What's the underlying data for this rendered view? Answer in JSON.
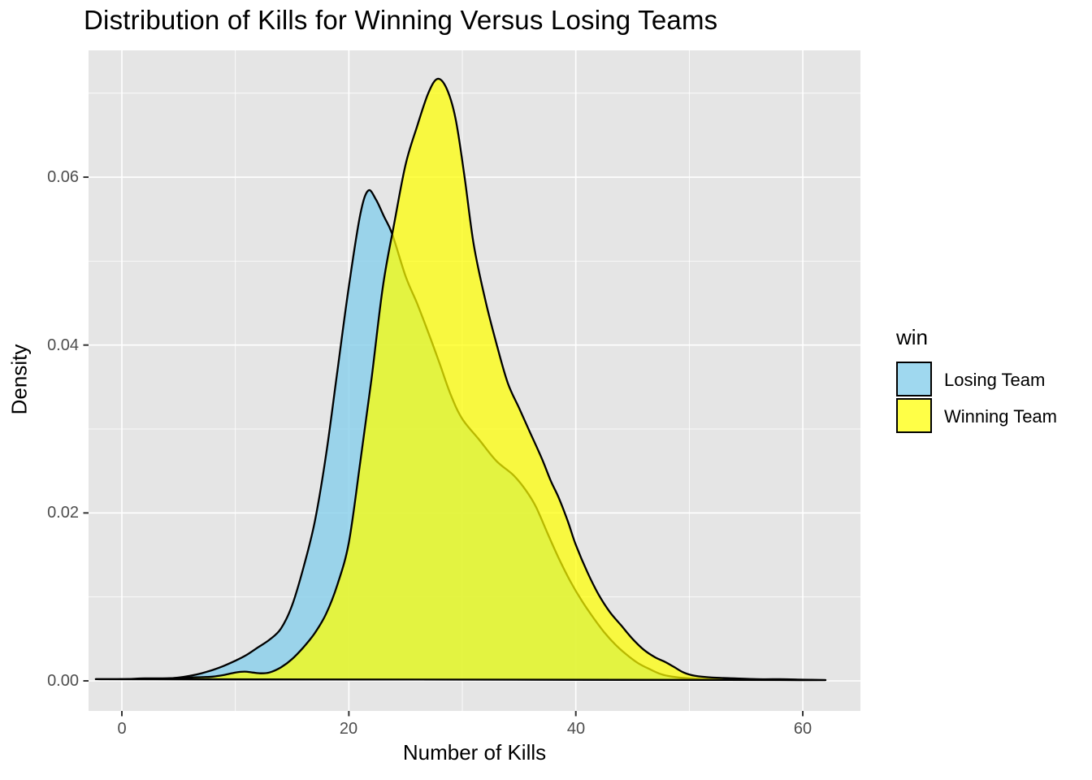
{
  "title": "Distribution of Kills for Winning Versus Losing Teams",
  "axes": {
    "x": {
      "title": "Number of Kills",
      "tick_labels": [
        "0",
        "20",
        "40",
        "60"
      ],
      "tick_values": [
        0,
        20,
        40,
        60
      ],
      "minor_tick_values": [
        10,
        30,
        50
      ]
    },
    "y": {
      "title": "Density",
      "tick_labels": [
        "0.00",
        "0.02",
        "0.04",
        "0.06"
      ],
      "tick_values": [
        0,
        0.02,
        0.04,
        0.06
      ],
      "minor_tick_values": [
        0.01,
        0.03,
        0.05,
        0.07
      ]
    }
  },
  "legend": {
    "title": "win",
    "items": [
      {
        "label": "Losing Team",
        "fill": "#87CEEB",
        "fill_alpha": 0.8
      },
      {
        "label": "Winning Team",
        "fill": "#FFFF00",
        "fill_alpha": 0.72
      }
    ]
  },
  "style": {
    "panel_background": "#E5E5E5",
    "grid_color": "#FFFFFF",
    "curve_outline": "#000000",
    "tick_mark_color": "#333333",
    "tick_label_color": "#4D4D4D"
  },
  "chart_data": {
    "type": "area",
    "subtype": "density",
    "title": "Distribution of Kills for Winning Versus Losing Teams",
    "xlabel": "Number of Kills",
    "ylabel": "Density",
    "xlim": [
      -2.936,
      65.08
    ],
    "ylim": [
      -0.00358,
      0.0751
    ],
    "grid": true,
    "legend_position": "right",
    "series": [
      {
        "name": "Losing Team",
        "fill": "#87CEEB",
        "fill_alpha": 0.8,
        "peak": {
          "x": 21.7,
          "y": 0.0584
        },
        "points": [
          [
            -2.3,
            0.0002
          ],
          [
            0,
            0.0002
          ],
          [
            2,
            0.0003
          ],
          [
            4,
            0.0003
          ],
          [
            5,
            0.0004
          ],
          [
            6,
            0.0006
          ],
          [
            7,
            0.0009
          ],
          [
            8,
            0.0013
          ],
          [
            9,
            0.0018
          ],
          [
            10,
            0.0024
          ],
          [
            11,
            0.0031
          ],
          [
            12,
            0.004
          ],
          [
            13,
            0.0049
          ],
          [
            14,
            0.0062
          ],
          [
            15,
            0.009
          ],
          [
            16,
            0.0135
          ],
          [
            17,
            0.019
          ],
          [
            18,
            0.027
          ],
          [
            19,
            0.037
          ],
          [
            20,
            0.047
          ],
          [
            21,
            0.0555
          ],
          [
            21.7,
            0.0584
          ],
          [
            22.4,
            0.0573
          ],
          [
            23.1,
            0.0553
          ],
          [
            23.8,
            0.0533
          ],
          [
            25,
            0.0482
          ],
          [
            26,
            0.045
          ],
          [
            27,
            0.0415
          ],
          [
            28,
            0.0378
          ],
          [
            29,
            0.034
          ],
          [
            30,
            0.0312
          ],
          [
            31.5,
            0.0287
          ],
          [
            33,
            0.0262
          ],
          [
            34.5,
            0.0245
          ],
          [
            35.6,
            0.0227
          ],
          [
            36.5,
            0.0207
          ],
          [
            37.5,
            0.0176
          ],
          [
            38.5,
            0.0146
          ],
          [
            39.5,
            0.0119
          ],
          [
            40.5,
            0.0096
          ],
          [
            41.5,
            0.0076
          ],
          [
            42.5,
            0.0058
          ],
          [
            43.5,
            0.0043
          ],
          [
            44.5,
            0.0031
          ],
          [
            45.5,
            0.0021
          ],
          [
            46.5,
            0.0014
          ],
          [
            47.5,
            0.0008
          ],
          [
            48.5,
            0.0005
          ],
          [
            50,
            0.0003
          ],
          [
            52,
            0.0002
          ],
          [
            55,
            0.00015
          ],
          [
            58,
            0.0001
          ],
          [
            62,
            0.0001
          ]
        ]
      },
      {
        "name": "Winning Team",
        "fill": "#FFFF00",
        "fill_alpha": 0.72,
        "peak": {
          "x": 27.8,
          "y": 0.0717
        },
        "points": [
          [
            -2.3,
            0.0002
          ],
          [
            0,
            0.0002
          ],
          [
            2,
            0.0002
          ],
          [
            4,
            0.0003
          ],
          [
            6,
            0.0004
          ],
          [
            7,
            0.00045
          ],
          [
            8,
            0.0005
          ],
          [
            9,
            0.0007
          ],
          [
            10,
            0.001
          ],
          [
            10.8,
            0.0011
          ],
          [
            11.5,
            0.001
          ],
          [
            12.2,
            0.0009
          ],
          [
            13,
            0.001
          ],
          [
            14,
            0.0016
          ],
          [
            15,
            0.0026
          ],
          [
            16,
            0.004
          ],
          [
            17,
            0.0057
          ],
          [
            18,
            0.008
          ],
          [
            19,
            0.0115
          ],
          [
            20,
            0.0165
          ],
          [
            21,
            0.026
          ],
          [
            22,
            0.036
          ],
          [
            23,
            0.047
          ],
          [
            24,
            0.0545
          ],
          [
            25,
            0.0615
          ],
          [
            26,
            0.066
          ],
          [
            27,
            0.07
          ],
          [
            27.8,
            0.0717
          ],
          [
            28.6,
            0.0706
          ],
          [
            29.4,
            0.067
          ],
          [
            30.2,
            0.06
          ],
          [
            31,
            0.052
          ],
          [
            32,
            0.0455
          ],
          [
            33,
            0.0402
          ],
          [
            34,
            0.0355
          ],
          [
            35,
            0.0325
          ],
          [
            36,
            0.0295
          ],
          [
            37,
            0.0265
          ],
          [
            37.8,
            0.0238
          ],
          [
            38.5,
            0.0218
          ],
          [
            39.3,
            0.019
          ],
          [
            40,
            0.0162
          ],
          [
            41,
            0.013
          ],
          [
            42,
            0.0103
          ],
          [
            43,
            0.0082
          ],
          [
            44,
            0.0066
          ],
          [
            45,
            0.005
          ],
          [
            46,
            0.0037
          ],
          [
            47,
            0.0028
          ],
          [
            47.8,
            0.0023
          ],
          [
            48.6,
            0.0017
          ],
          [
            49.5,
            0.001
          ],
          [
            50.5,
            0.0006
          ],
          [
            52,
            0.0004
          ],
          [
            54,
            0.0003
          ],
          [
            56,
            0.0002
          ],
          [
            58,
            0.0002
          ],
          [
            60,
            0.00015
          ],
          [
            62,
            0.0001
          ]
        ]
      }
    ]
  }
}
